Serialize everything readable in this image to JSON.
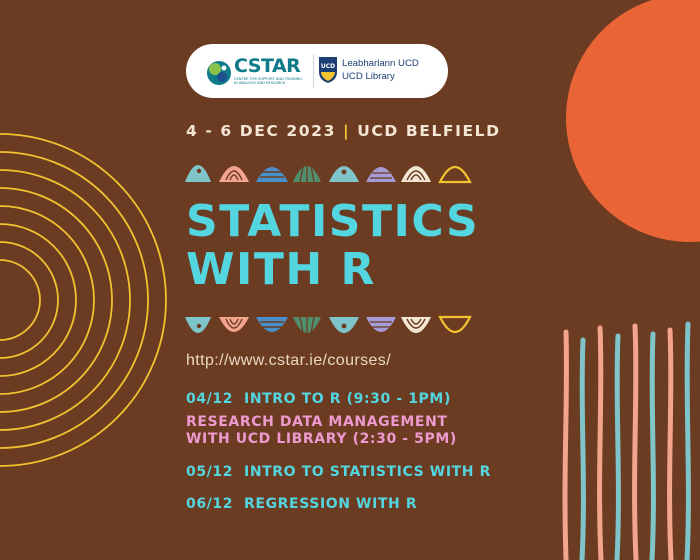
{
  "logos": {
    "cstar_name": "CSTAR",
    "cstar_tagline": [
      "CENTRE FOR SUPPORT AND TRAINING",
      "IN ANALYSIS AND RESEARCH"
    ],
    "library_name_irish": "Leabharlann UCD",
    "library_name_english": "UCD Library",
    "crest_text": "UCD"
  },
  "event": {
    "dates": "4 - 6 DEC 2023",
    "separator": "|",
    "venue": "UCD BELFIELD",
    "title_line1": "STATISTICS",
    "title_line2": "WITH R",
    "url": "http://www.cstar.ie/courses/"
  },
  "sessions": [
    {
      "date": "04/12",
      "title": "INTRO TO R (9:30 - 1PM)"
    },
    {
      "title_line1": "RESEARCH DATA MANAGEMENT",
      "title_line2": "WITH UCD LIBRARY (2:30 - 5PM)"
    },
    {
      "date": "05/12",
      "title": "INTRO TO STATISTICS WITH R"
    },
    {
      "date": "06/12",
      "title": "REGRESSION WITH R"
    }
  ],
  "colors": {
    "background": "#6b3b22",
    "accent_cyan": "#54d6e0",
    "accent_pink": "#ee9ad0",
    "accent_orange": "#ea6535",
    "accent_yellow": "#f2c230",
    "cream": "#f3e6d4"
  }
}
